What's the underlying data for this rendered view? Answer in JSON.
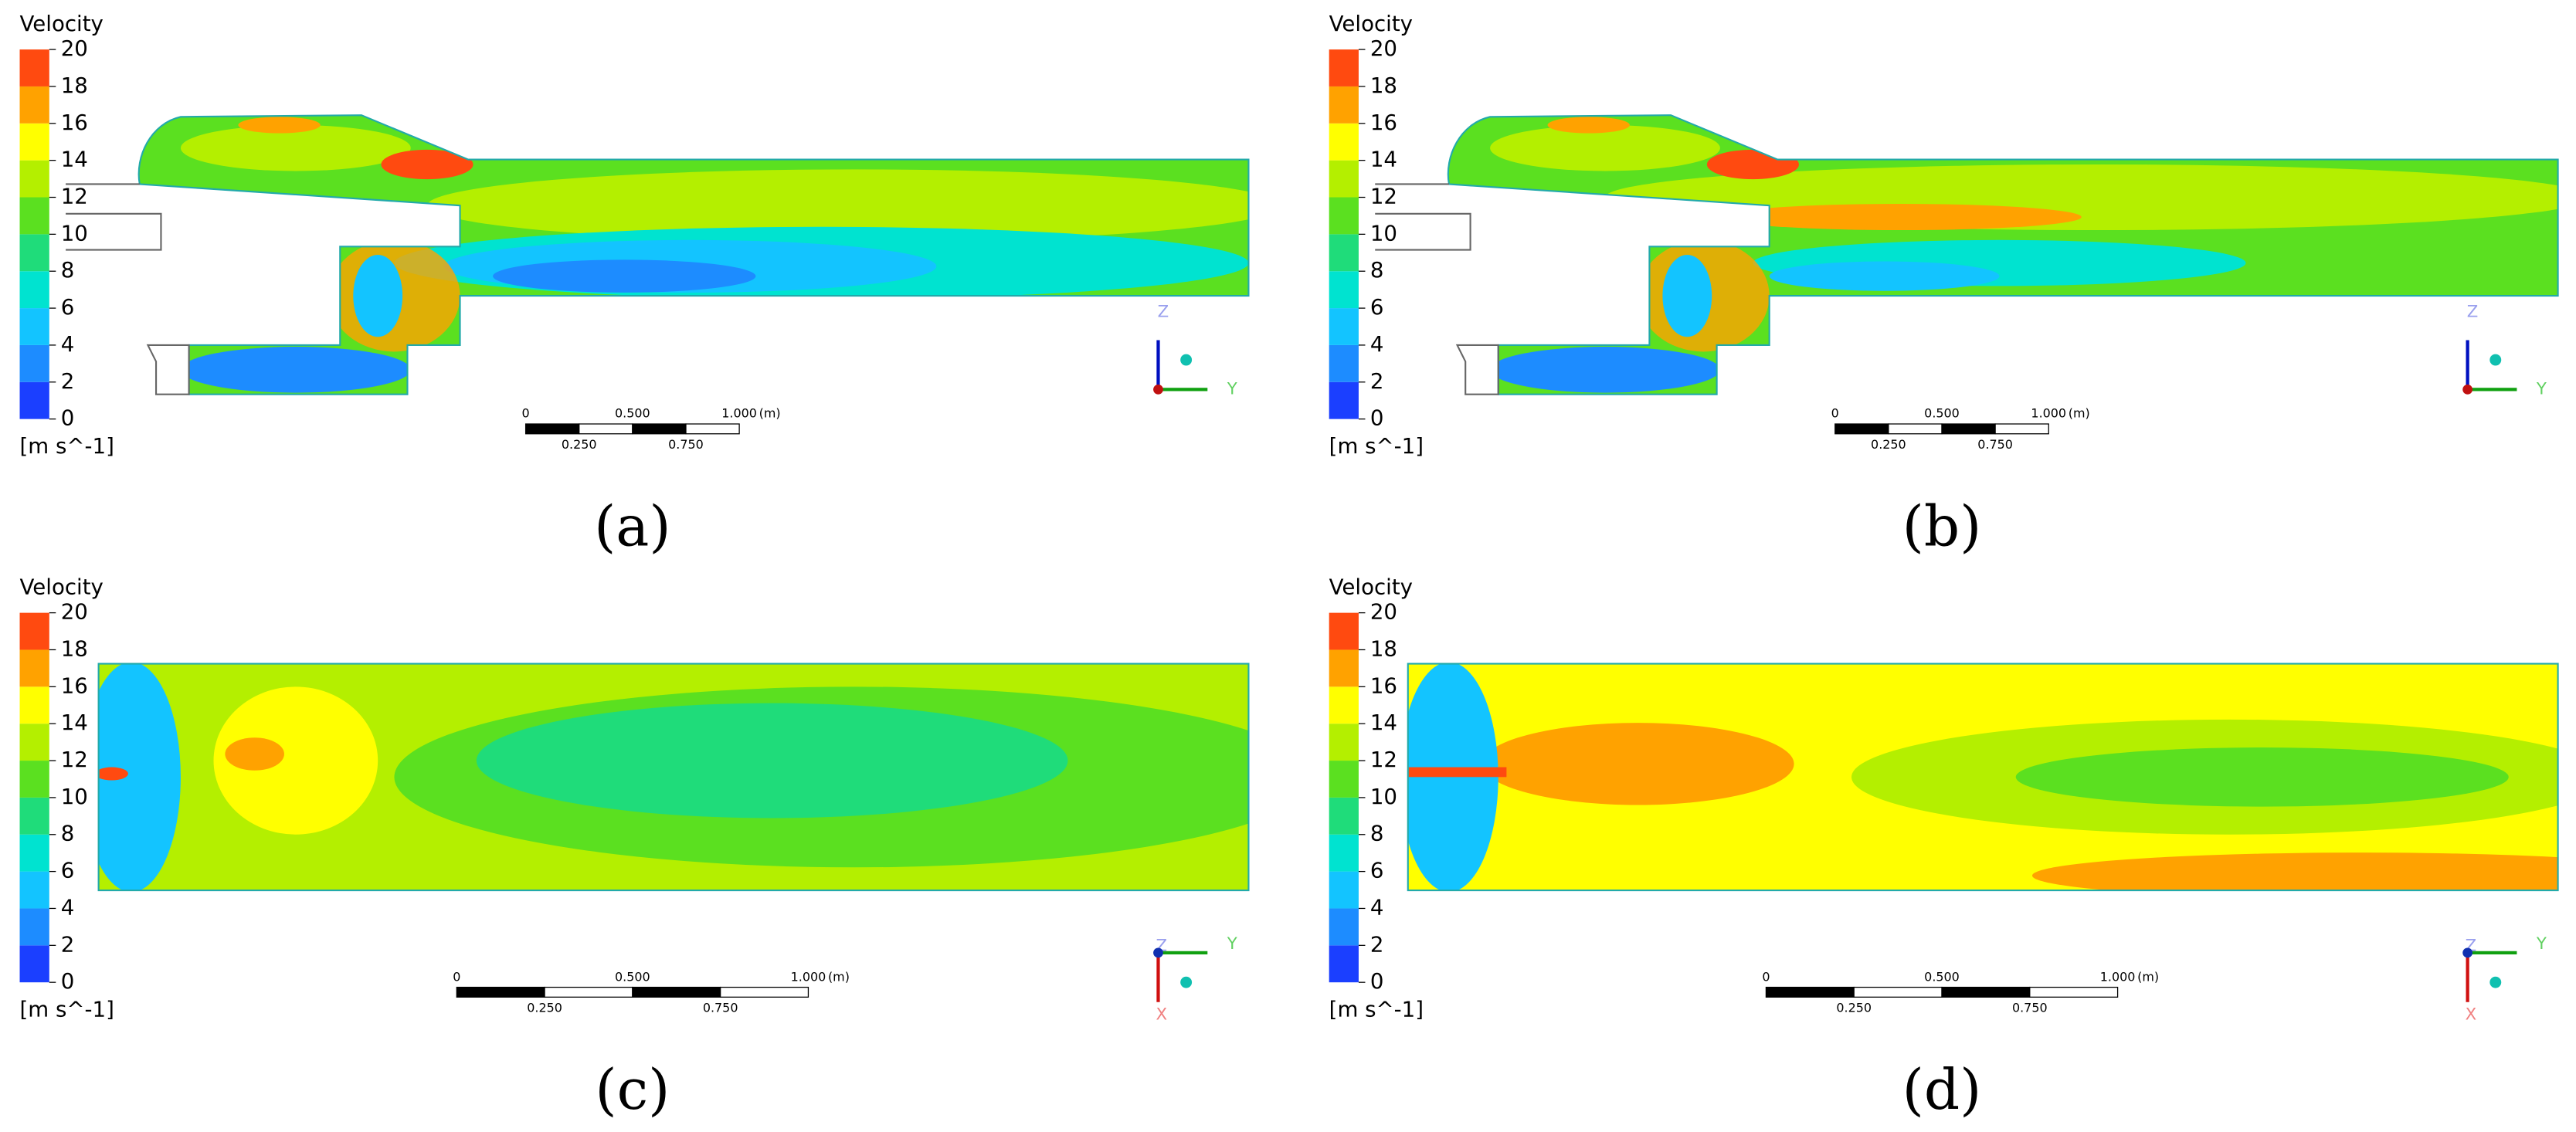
{
  "legend_colors": [
    "#1b3fff",
    "#1d8cff",
    "#13c4ff",
    "#00e3d0",
    "#1fdc7a",
    "#5be020",
    "#b4ef00",
    "#ffff00",
    "#ffa200",
    "#ff4a10"
  ],
  "panels": [
    {
      "legend_title": "Velocity",
      "legend_ticks": [
        0,
        2,
        4,
        6,
        8,
        10,
        12,
        14,
        16,
        18,
        20
      ],
      "unit": "[m s^-1]",
      "scale_top": [
        "0",
        "0.500",
        "1.000",
        "(m)"
      ],
      "scale_bottom": [
        "0.250",
        "0.750"
      ],
      "axes": [
        "Z",
        "Y"
      ],
      "caption": "(a)"
    },
    {
      "legend_title": "Velocity",
      "legend_ticks": [
        0,
        2,
        4,
        6,
        8,
        10,
        12,
        14,
        16,
        18,
        20
      ],
      "unit": "[m s^-1]",
      "scale_top": [
        "0",
        "0.500",
        "1.000",
        "(m)"
      ],
      "scale_bottom": [
        "0.250",
        "0.750"
      ],
      "axes": [
        "Z",
        "Y"
      ],
      "caption": "(b)"
    },
    {
      "legend_title": "Velocity",
      "legend_ticks": [
        0,
        2,
        4,
        6,
        8,
        10,
        12,
        14,
        16,
        18,
        20
      ],
      "unit": "[m s^-1]",
      "scale_top": [
        "0",
        "0.500",
        "1.000",
        "(m)"
      ],
      "scale_bottom": [
        "0.250",
        "0.750"
      ],
      "axes": [
        "Z",
        "Y",
        "X"
      ],
      "caption": "(c)"
    },
    {
      "legend_title": "Velocity",
      "legend_ticks": [
        0,
        2,
        4,
        6,
        8,
        10,
        12,
        14,
        16,
        18,
        20
      ],
      "unit": "[m s^-1]",
      "scale_top": [
        "0",
        "0.500",
        "1.000",
        "(m)"
      ],
      "scale_bottom": [
        "0.250",
        "0.750"
      ],
      "axes": [
        "Z",
        "Y",
        "X"
      ],
      "caption": "(d)"
    }
  ]
}
